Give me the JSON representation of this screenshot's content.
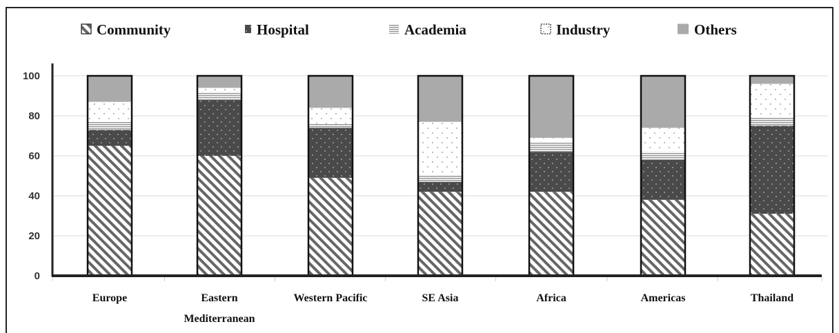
{
  "chart_data": {
    "type": "bar",
    "stacked": true,
    "title": "",
    "xlabel": "",
    "ylabel": "",
    "ylim": [
      0,
      100
    ],
    "yticks": [
      "0",
      "20",
      "40",
      "60",
      "80",
      "100"
    ],
    "grid": true,
    "legend_position": "top",
    "categories": [
      "Europe",
      "Eastern Mediterranean",
      "Western Pacific",
      "SE Asia",
      "Africa",
      "Americas",
      "Thailand"
    ],
    "category_lines": [
      [
        "Europe"
      ],
      [
        "Eastern",
        "Mediterranean"
      ],
      [
        "Western Pacific"
      ],
      [
        "SE Asia"
      ],
      [
        "Africa"
      ],
      [
        "Americas"
      ],
      [
        "Thailand"
      ]
    ],
    "series": [
      {
        "name": "Community",
        "pattern": "diagonal-hatch",
        "values": [
          65,
          60,
          49,
          42,
          42,
          38,
          31
        ]
      },
      {
        "name": "Hospital",
        "pattern": "dark-dotted",
        "values": [
          8,
          28,
          25,
          5,
          20,
          20,
          44
        ]
      },
      {
        "name": "Academia",
        "pattern": "horizontal-lines",
        "values": [
          4,
          4,
          2,
          3,
          5,
          4,
          4
        ]
      },
      {
        "name": "Industry",
        "pattern": "light-dotted",
        "values": [
          10,
          2,
          8,
          27,
          2,
          12,
          17
        ]
      },
      {
        "name": "Others",
        "pattern": "solid-gray",
        "values": [
          13,
          6,
          16,
          23,
          31,
          26,
          4
        ]
      }
    ],
    "colors": {
      "community": "#555555",
      "hospital": "#4a4a4a",
      "academia": "#999999",
      "industry": "#ffffff",
      "others": "#aaaaaa",
      "axis": "#222222",
      "grid": "#d9d9d9"
    }
  }
}
